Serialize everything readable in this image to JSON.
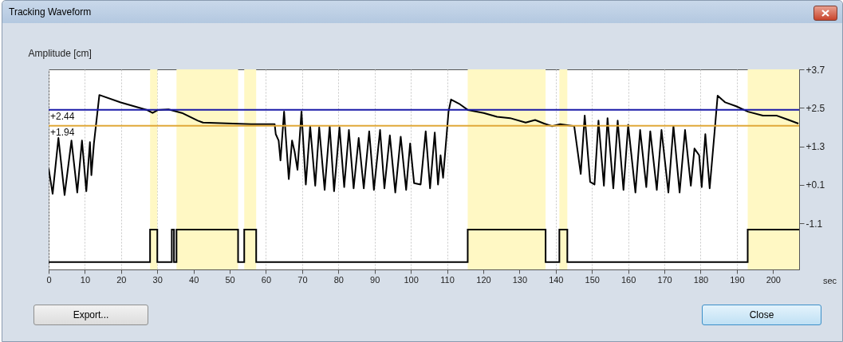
{
  "chart_data": {
    "type": "line",
    "title": "Tracking Waveform",
    "ylabel": "Amplitude [cm]",
    "xlabel": "sec",
    "xlim": [
      0,
      207.2
    ],
    "ylim": [
      -2.54,
      3.7
    ],
    "xticks": [
      0,
      10,
      20,
      30,
      40,
      50,
      60,
      70,
      80,
      90,
      100,
      110,
      120,
      130,
      140,
      150,
      160,
      170,
      180,
      190,
      200
    ],
    "yticks": [
      {
        "value": 3.7,
        "label": "+3.7"
      },
      {
        "value": 2.5,
        "label": "+2.5"
      },
      {
        "value": 1.3,
        "label": "+1.3"
      },
      {
        "value": 0.1,
        "label": "+0.1"
      },
      {
        "value": -1.1,
        "label": "-1.1"
      }
    ],
    "grid": "x",
    "series": [
      {
        "color": "#000000",
        "x": [
          0,
          1.1,
          2.7,
          4.4,
          6.3,
          7.9,
          9.2,
          10.4,
          11.4,
          11.8,
          12.5,
          14.0,
          19.9,
          27.2,
          28.7,
          30.1,
          33.1,
          36.8,
          41.2,
          42.6,
          55.9,
          62.4,
          62.7,
          63.5,
          64.0,
          65.0,
          66.3,
          67.2,
          67.9,
          68.7,
          69.8,
          71.0,
          72.2,
          73.6,
          74.7,
          76.2,
          77.6,
          78.8,
          80.3,
          81.6,
          82.9,
          84.2,
          85.6,
          87.0,
          88.5,
          89.8,
          91.5,
          92.7,
          94.2,
          95.7,
          97.2,
          98.7,
          99.8,
          100.9,
          102.7,
          104.1,
          105.3,
          106.6,
          107.5,
          108.2,
          108.9,
          110.4,
          111.1,
          113.3,
          115.8,
          120.1,
          123.8,
          127.4,
          131.7,
          134.3,
          136.8,
          139.0,
          141.2,
          145.1,
          146.9,
          148.0,
          149.5,
          150.7,
          151.8,
          153.3,
          154.3,
          155.9,
          157.1,
          158.7,
          160.0,
          162.0,
          163.3,
          165.0,
          166.1,
          167.9,
          169.2,
          171.1,
          172.5,
          174.2,
          175.7,
          177.3,
          178.3,
          179.6,
          180.3,
          181.3,
          182.5,
          183.9,
          184.7,
          186.8,
          189.8,
          193.1,
          197.2,
          200.9,
          203.9,
          207.0
        ],
        "values": [
          0.61,
          -0.18,
          1.56,
          -0.22,
          1.48,
          -0.14,
          1.48,
          -0.1,
          1.43,
          0.4,
          1.39,
          2.9,
          2.67,
          2.43,
          2.34,
          2.43,
          2.45,
          2.34,
          2.1,
          2.04,
          1.99,
          1.99,
          1.68,
          1.48,
          0.86,
          2.38,
          0.28,
          1.48,
          1.14,
          0.57,
          2.38,
          0.11,
          1.93,
          0.07,
          1.89,
          -0.06,
          1.93,
          -0.1,
          1.89,
          0.03,
          1.81,
          -0.01,
          1.56,
          -0.01,
          1.77,
          -0.06,
          1.81,
          -0.01,
          1.64,
          -0.14,
          1.6,
          -0.06,
          1.39,
          0.15,
          0.11,
          1.77,
          -0.01,
          1.73,
          0.11,
          1.02,
          0.32,
          2.38,
          2.76,
          2.63,
          2.43,
          2.34,
          2.22,
          2.18,
          2.04,
          2.12,
          2.01,
          1.93,
          1.99,
          1.93,
          0.44,
          2.26,
          0.19,
          0.11,
          2.1,
          0.07,
          2.18,
          -0.01,
          2.1,
          -0.06,
          1.97,
          -0.14,
          1.81,
          0.03,
          1.77,
          -0.06,
          1.81,
          -0.14,
          1.93,
          -0.14,
          1.81,
          0.07,
          1.23,
          1.02,
          0.03,
          1.68,
          -0.01,
          1.81,
          2.88,
          2.67,
          2.55,
          2.38,
          2.26,
          2.26,
          2.14,
          2.01
        ]
      },
      {
        "type": "step",
        "color": "#000000",
        "x": [
          0,
          28,
          30,
          34,
          34.6,
          35.3,
          52.3,
          54,
          57.3,
          115.7,
          137.2,
          141,
          143.2,
          193,
          207.2
        ],
        "values": [
          -2.31,
          -1.3,
          -2.31,
          -1.3,
          -2.31,
          -1.3,
          -2.31,
          -1.3,
          -2.31,
          -1.3,
          -2.31,
          -1.3,
          -2.31,
          -1.3,
          -1.3
        ]
      }
    ],
    "ref_lines": [
      {
        "axis": "y",
        "value": 2.44,
        "label": "+2.44",
        "color": "#1a1aa8"
      },
      {
        "axis": "y",
        "value": 1.94,
        "label": "+1.94",
        "color": "#e0a838"
      }
    ],
    "bands": [
      {
        "axis": "x",
        "from": 28,
        "to": 30,
        "color": "#fff8c4"
      },
      {
        "axis": "x",
        "from": 35.3,
        "to": 52.3,
        "color": "#fff8c4"
      },
      {
        "axis": "x",
        "from": 54,
        "to": 57.3,
        "color": "#fff8c4"
      },
      {
        "axis": "x",
        "from": 115.7,
        "to": 137.2,
        "color": "#fff8c4"
      },
      {
        "axis": "x",
        "from": 141,
        "to": 143.2,
        "color": "#fff8c4"
      },
      {
        "axis": "x",
        "from": 193,
        "to": 207.2,
        "color": "#fff8c4"
      }
    ],
    "annotations": [
      "Export...",
      "Close"
    ]
  }
}
